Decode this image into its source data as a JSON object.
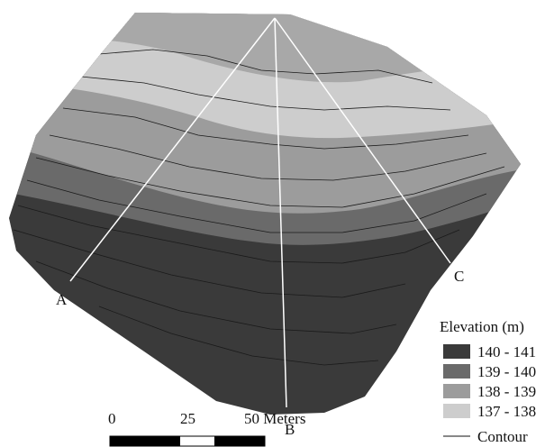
{
  "map": {
    "profile_labels": [
      "A",
      "B",
      "C"
    ],
    "legend": {
      "title": "Elevation (m)",
      "items": [
        {
          "label": "140 - 141",
          "color": "#3a3a3a"
        },
        {
          "label": "139 - 140",
          "color": "#6a6a6a"
        },
        {
          "label": "138 - 139",
          "color": "#9c9c9c"
        },
        {
          "label": "137 - 138",
          "color": "#cdcdcd"
        }
      ],
      "contour": "Contour"
    },
    "scale_bar": [
      "0",
      "25",
      "50 Meters"
    ]
  }
}
